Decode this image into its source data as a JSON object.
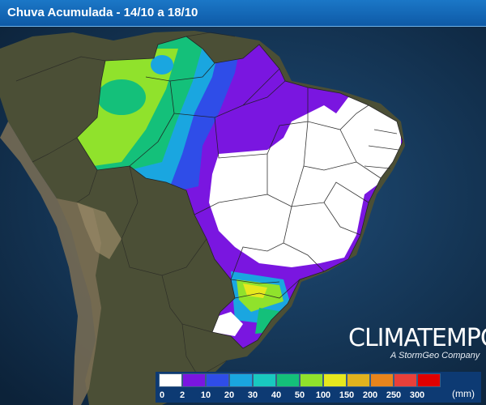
{
  "header": {
    "title": "Chuva Acumulada - 14/10 a 18/10"
  },
  "brand": {
    "name": "CLIMATEMPO",
    "tagline": "A StormGeo Company",
    "icon": "climatempo-logo-icon"
  },
  "legend": {
    "unit": "(mm)",
    "thresholds": [
      "0",
      "2",
      "10",
      "20",
      "30",
      "40",
      "50",
      "100",
      "150",
      "200",
      "250",
      "300"
    ],
    "colors": [
      "#ffffff",
      "#7a16e0",
      "#2f4de8",
      "#1aa6e0",
      "#19c9c0",
      "#14c07a",
      "#90e22c",
      "#e6e81e",
      "#e0b21e",
      "#e8841c",
      "#e8403a",
      "#e00000"
    ]
  },
  "map": {
    "colors": {
      "ocean": "#16385c",
      "land": "#4a4e36",
      "andes": "#7a6c54",
      "border": "#2a2a2a",
      "heavy": "#ffffff",
      "band_purple": "#7a16e0",
      "band_blue": "#2f4de8",
      "band_cyan": "#1aa6e0",
      "band_green": "#14c07a",
      "band_lime": "#90e22c"
    }
  }
}
